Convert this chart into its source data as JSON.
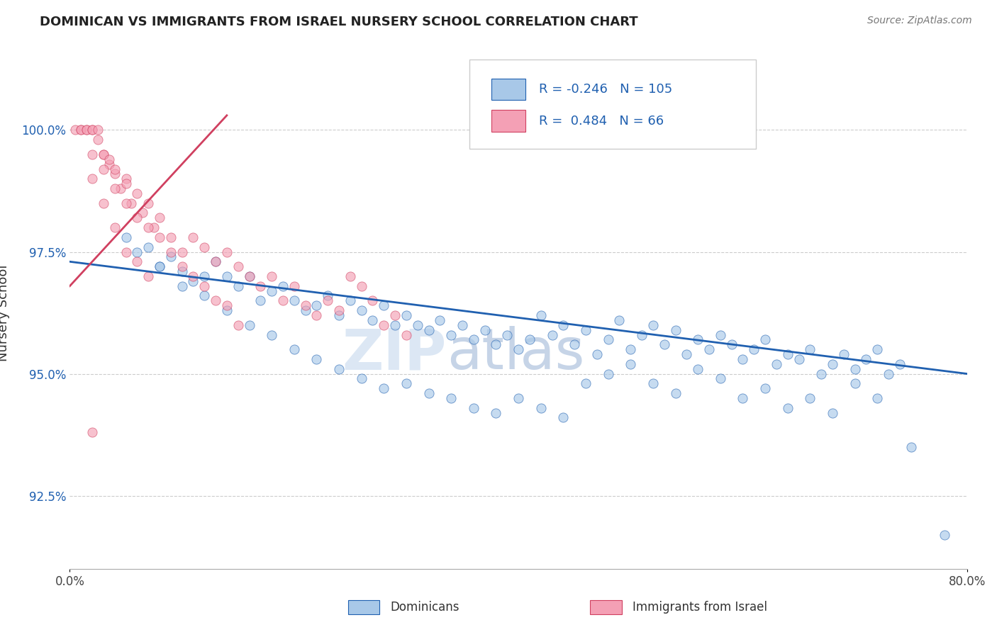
{
  "title": "DOMINICAN VS IMMIGRANTS FROM ISRAEL NURSERY SCHOOL CORRELATION CHART",
  "source_text": "Source: ZipAtlas.com",
  "ylabel": "Nursery School",
  "xmin": 0.0,
  "xmax": 80.0,
  "ymin": 91.0,
  "ymax": 101.5,
  "yticks": [
    92.5,
    95.0,
    97.5,
    100.0
  ],
  "ytick_labels": [
    "92.5%",
    "95.0%",
    "97.5%",
    "100.0%"
  ],
  "blue_R": -0.246,
  "blue_N": 105,
  "pink_R": 0.484,
  "pink_N": 66,
  "blue_color": "#A8C8E8",
  "pink_color": "#F4A0B5",
  "blue_line_color": "#2060B0",
  "pink_line_color": "#D04060",
  "legend_label_blue": "Dominicans",
  "legend_label_pink": "Immigrants from Israel",
  "watermark": "ZIPAtlas",
  "blue_trend_x0": 0.0,
  "blue_trend_y0": 97.3,
  "blue_trend_x1": 80.0,
  "blue_trend_y1": 95.0,
  "pink_trend_x0": 0.0,
  "pink_trend_y0": 96.8,
  "pink_trend_x1": 14.0,
  "pink_trend_y1": 100.3,
  "blue_scatter_x": [
    5,
    6,
    7,
    8,
    9,
    10,
    11,
    12,
    13,
    14,
    15,
    16,
    17,
    18,
    19,
    20,
    21,
    22,
    23,
    24,
    25,
    26,
    27,
    28,
    29,
    30,
    31,
    32,
    33,
    34,
    35,
    36,
    37,
    38,
    39,
    40,
    41,
    42,
    43,
    44,
    45,
    46,
    47,
    48,
    49,
    50,
    51,
    52,
    53,
    54,
    55,
    56,
    57,
    58,
    59,
    60,
    61,
    62,
    63,
    64,
    65,
    66,
    67,
    68,
    69,
    70,
    71,
    72,
    73,
    74,
    8,
    10,
    12,
    14,
    16,
    18,
    20,
    22,
    24,
    26,
    28,
    30,
    32,
    34,
    36,
    38,
    40,
    42,
    44,
    46,
    48,
    50,
    52,
    54,
    56,
    58,
    60,
    62,
    64,
    66,
    68,
    70,
    72,
    75,
    78
  ],
  "blue_scatter_y": [
    97.8,
    97.5,
    97.6,
    97.2,
    97.4,
    97.1,
    96.9,
    97.0,
    97.3,
    97.0,
    96.8,
    97.0,
    96.5,
    96.7,
    96.8,
    96.5,
    96.3,
    96.4,
    96.6,
    96.2,
    96.5,
    96.3,
    96.1,
    96.4,
    96.0,
    96.2,
    96.0,
    95.9,
    96.1,
    95.8,
    96.0,
    95.7,
    95.9,
    95.6,
    95.8,
    95.5,
    95.7,
    96.2,
    95.8,
    96.0,
    95.6,
    95.9,
    95.4,
    95.7,
    96.1,
    95.5,
    95.8,
    96.0,
    95.6,
    95.9,
    95.4,
    95.7,
    95.5,
    95.8,
    95.6,
    95.3,
    95.5,
    95.7,
    95.2,
    95.4,
    95.3,
    95.5,
    95.0,
    95.2,
    95.4,
    95.1,
    95.3,
    95.5,
    95.0,
    95.2,
    97.2,
    96.8,
    96.6,
    96.3,
    96.0,
    95.8,
    95.5,
    95.3,
    95.1,
    94.9,
    94.7,
    94.8,
    94.6,
    94.5,
    94.3,
    94.2,
    94.5,
    94.3,
    94.1,
    94.8,
    95.0,
    95.2,
    94.8,
    94.6,
    95.1,
    94.9,
    94.5,
    94.7,
    94.3,
    94.5,
    94.2,
    94.8,
    94.5,
    93.5,
    91.7
  ],
  "pink_scatter_x": [
    0.5,
    1,
    1,
    1.5,
    1.5,
    2,
    2,
    2.5,
    2.5,
    3,
    3,
    3.5,
    3.5,
    4,
    4,
    4.5,
    5,
    5,
    5.5,
    6,
    6.5,
    7,
    7.5,
    8,
    9,
    10,
    11,
    12,
    13,
    14,
    15,
    16,
    17,
    18,
    19,
    20,
    21,
    22,
    23,
    24,
    25,
    26,
    27,
    28,
    29,
    30,
    2,
    3,
    4,
    5,
    6,
    7,
    8,
    9,
    10,
    11,
    12,
    13,
    14,
    15,
    2,
    3,
    4,
    5,
    6,
    7
  ],
  "pink_scatter_y": [
    100.0,
    100.0,
    100.0,
    100.0,
    100.0,
    100.0,
    100.0,
    100.0,
    99.8,
    99.5,
    99.5,
    99.3,
    99.4,
    99.1,
    99.2,
    98.8,
    99.0,
    98.9,
    98.5,
    98.7,
    98.3,
    98.5,
    98.0,
    98.2,
    97.8,
    97.5,
    97.8,
    97.6,
    97.3,
    97.5,
    97.2,
    97.0,
    96.8,
    97.0,
    96.5,
    96.8,
    96.4,
    96.2,
    96.5,
    96.3,
    97.0,
    96.8,
    96.5,
    96.0,
    96.2,
    95.8,
    99.5,
    99.2,
    98.8,
    98.5,
    98.2,
    98.0,
    97.8,
    97.5,
    97.2,
    97.0,
    96.8,
    96.5,
    96.4,
    96.0,
    99.0,
    98.5,
    98.0,
    97.5,
    97.3,
    97.0
  ],
  "pink_outlier_x": [
    2
  ],
  "pink_outlier_y": [
    93.8
  ]
}
